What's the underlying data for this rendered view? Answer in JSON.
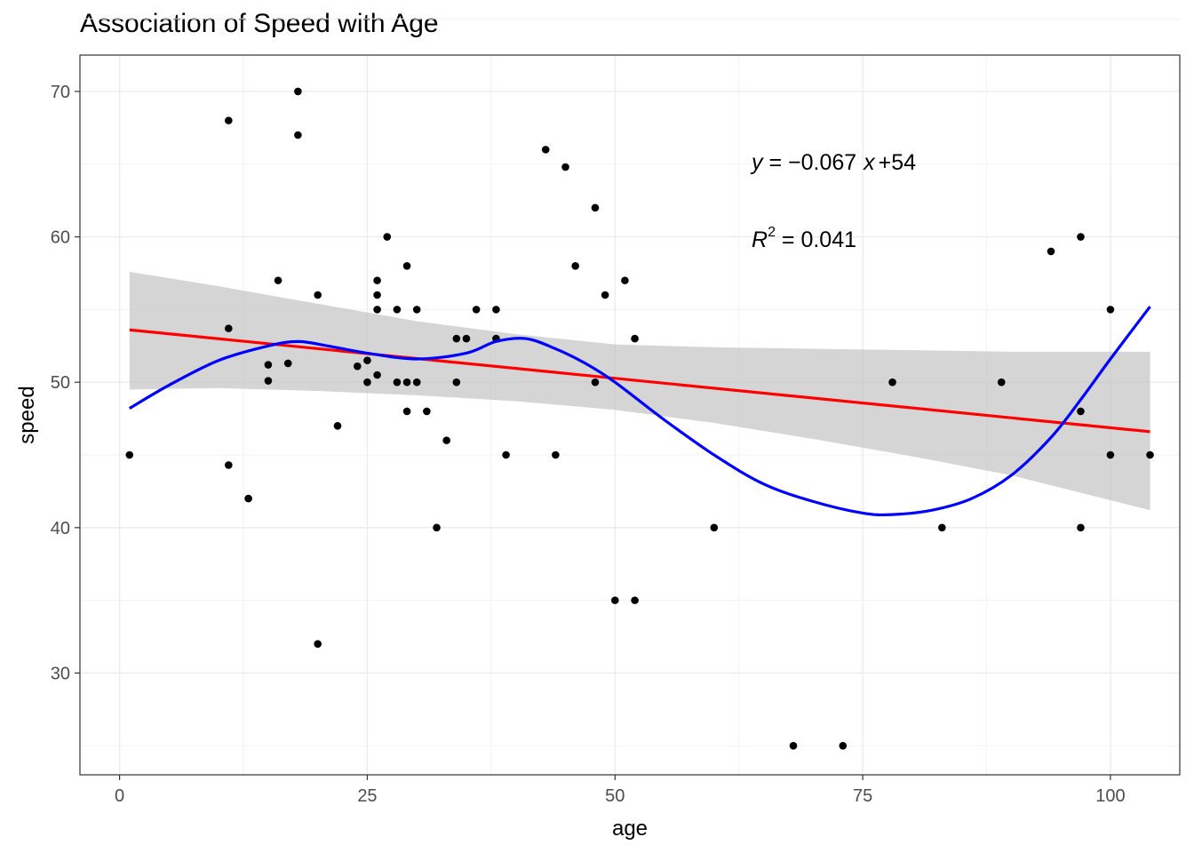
{
  "chart_data": {
    "type": "scatter",
    "title": "Association of Speed with Age",
    "xlabel": "age",
    "ylabel": "speed",
    "xlim": [
      -4,
      107
    ],
    "ylim": [
      23,
      72.5
    ],
    "x_ticks": [
      0,
      25,
      50,
      75,
      100
    ],
    "y_ticks": [
      30,
      40,
      50,
      60,
      70
    ],
    "grid": true,
    "colors": {
      "points": "#000000",
      "linear_fit": "#ff0000",
      "smooth_fit": "#0000ff",
      "confidence_band": "#bfbfbf"
    },
    "points": [
      [
        1,
        45
      ],
      [
        11,
        68
      ],
      [
        11,
        53.7
      ],
      [
        11,
        44.3
      ],
      [
        13,
        42
      ],
      [
        15,
        51.2
      ],
      [
        15,
        50.1
      ],
      [
        16,
        57
      ],
      [
        17,
        51.3
      ],
      [
        18,
        70
      ],
      [
        18,
        67
      ],
      [
        20,
        56
      ],
      [
        20,
        32
      ],
      [
        22,
        47
      ],
      [
        24,
        51.1
      ],
      [
        25,
        51.5
      ],
      [
        25,
        50
      ],
      [
        26,
        57
      ],
      [
        26,
        56
      ],
      [
        26,
        55
      ],
      [
        26,
        50.5
      ],
      [
        27,
        60
      ],
      [
        28,
        55
      ],
      [
        28,
        50
      ],
      [
        29,
        58
      ],
      [
        29,
        50
      ],
      [
        29,
        48
      ],
      [
        30,
        55
      ],
      [
        30,
        50
      ],
      [
        31,
        48
      ],
      [
        32,
        40
      ],
      [
        33,
        46
      ],
      [
        34,
        53
      ],
      [
        34,
        50
      ],
      [
        35,
        53
      ],
      [
        36,
        55
      ],
      [
        38,
        55
      ],
      [
        38,
        53
      ],
      [
        39,
        45
      ],
      [
        43,
        66
      ],
      [
        44,
        45
      ],
      [
        45,
        64.8
      ],
      [
        46,
        58
      ],
      [
        48,
        62
      ],
      [
        48,
        50
      ],
      [
        49,
        56
      ],
      [
        50,
        35
      ],
      [
        51,
        57
      ],
      [
        52,
        53
      ],
      [
        52,
        35
      ],
      [
        60,
        40
      ],
      [
        68,
        25
      ],
      [
        73,
        25
      ],
      [
        78,
        50
      ],
      [
        83,
        40
      ],
      [
        89,
        50
      ],
      [
        94,
        59
      ],
      [
        97,
        60
      ],
      [
        97,
        48
      ],
      [
        97,
        40
      ],
      [
        100,
        55
      ],
      [
        100,
        45
      ],
      [
        104,
        45
      ]
    ],
    "linear_fit": {
      "x": [
        1,
        104
      ],
      "y": [
        53.6,
        46.6
      ]
    },
    "confidence_band": {
      "x": [
        1,
        10,
        20,
        30,
        40,
        50,
        60,
        70,
        80,
        90,
        104
      ],
      "lower": [
        49.5,
        49.6,
        49.4,
        49.1,
        48.7,
        48.1,
        47.2,
        46.1,
        44.9,
        43.6,
        41.2
      ],
      "upper": [
        57.6,
        56.6,
        55.4,
        54.2,
        53.3,
        52.6,
        52.4,
        52.3,
        52.2,
        52.1,
        52.1
      ]
    },
    "smooth_fit": {
      "x": [
        1,
        5,
        10,
        15,
        18,
        21,
        25,
        30,
        35,
        38,
        41,
        44,
        47,
        50,
        55,
        60,
        65,
        70,
        75,
        78,
        82,
        86,
        90,
        94,
        97,
        100,
        104
      ],
      "y": [
        48.2,
        49.8,
        51.5,
        52.5,
        52.8,
        52.5,
        52.0,
        51.6,
        52.0,
        52.8,
        53.0,
        52.3,
        51.3,
        50.0,
        47.4,
        45.0,
        43.0,
        41.8,
        41.0,
        40.9,
        41.2,
        42.0,
        43.6,
        46.2,
        48.8,
        51.6,
        55.2
      ]
    },
    "annotations": {
      "equation": {
        "y_var": "y",
        "eq": " = ",
        "minus": "−",
        "coef": "0.067",
        "x_var": "x",
        "plus": "+",
        "intercept": "54"
      },
      "r_squared": {
        "r": "R",
        "exp": "2",
        "eq": " = 0.041"
      }
    }
  }
}
